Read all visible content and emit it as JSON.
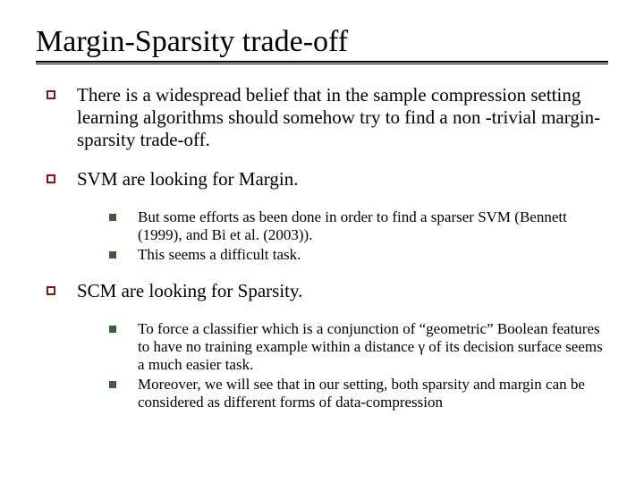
{
  "title": "Margin-Sparsity trade-off",
  "colors": {
    "lvl1_bullet_border": "#7a1a1a",
    "lvl2_bullet_fill": "#3a5f3a",
    "text": "#000000",
    "background": "#ffffff"
  },
  "typography": {
    "title_fontsize": 34,
    "lvl1_fontsize": 21,
    "lvl2_fontsize": 17,
    "font_family": "Times New Roman"
  },
  "items": [
    {
      "text": "There is a widespread belief that in the sample compression setting learning algorithms  should somehow try to find a non -trivial margin-sparsity trade-off.",
      "sub": []
    },
    {
      "text": "SVM are looking for Margin.",
      "sub": [
        "But  some efforts as been done in order to find a sparser SVM (Bennett (1999),  and Bi et al. (2003)).",
        "This seems a difficult task."
      ]
    },
    {
      "text": "SCM are looking for Sparsity.",
      "sub": [
        "To  force a classifier which is a conjunction of “geometric” Boolean features to have no training example within a distance γ of its decision surface seems a much easier task.",
        "Moreover, we will see that in our setting, both sparsity and margin can be considered as different forms of data-compression"
      ]
    }
  ]
}
